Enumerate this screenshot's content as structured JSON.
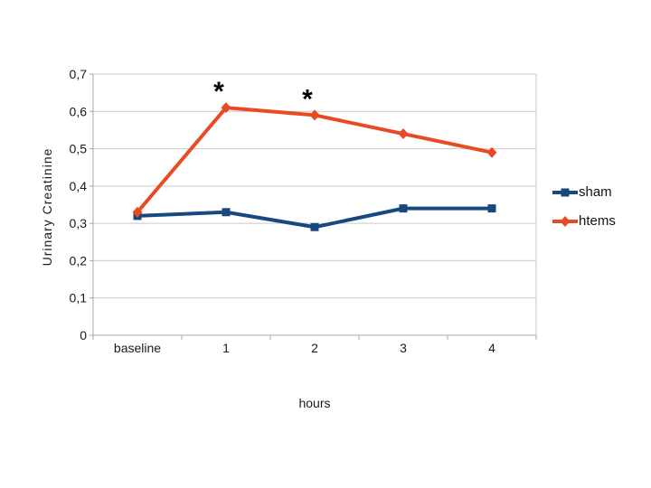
{
  "chart_data": {
    "type": "line",
    "title": "",
    "xlabel": "hours",
    "ylabel": "Urinary Creatinine",
    "categories": [
      "baseline",
      "1",
      "2",
      "3",
      "4"
    ],
    "series": [
      {
        "name": "sham",
        "color": "#17497E",
        "marker": "square",
        "values": [
          0.32,
          0.33,
          0.29,
          0.34,
          0.34
        ]
      },
      {
        "name": "htems",
        "color": "#E94A24",
        "marker": "diamond",
        "values": [
          0.33,
          0.61,
          0.59,
          0.54,
          0.49
        ]
      }
    ],
    "ylim": [
      0,
      0.7
    ],
    "ytick_step": 0.1,
    "ytick_labels": [
      "0",
      "0,1",
      "0,2",
      "0,3",
      "0,4",
      "0,5",
      "0,6",
      "0,7"
    ],
    "grid": true,
    "legend_position": "right",
    "annotations": [
      {
        "text": "*",
        "series": "htems",
        "category_index": 1
      },
      {
        "text": "*",
        "series": "htems",
        "category_index": 2
      }
    ],
    "colors": {
      "gridline": "#C9C9C9",
      "axis": "#A8A8A8",
      "tick_text": "#1A1A1A",
      "annotation": "#000000",
      "background": "#FFFFFF"
    }
  }
}
